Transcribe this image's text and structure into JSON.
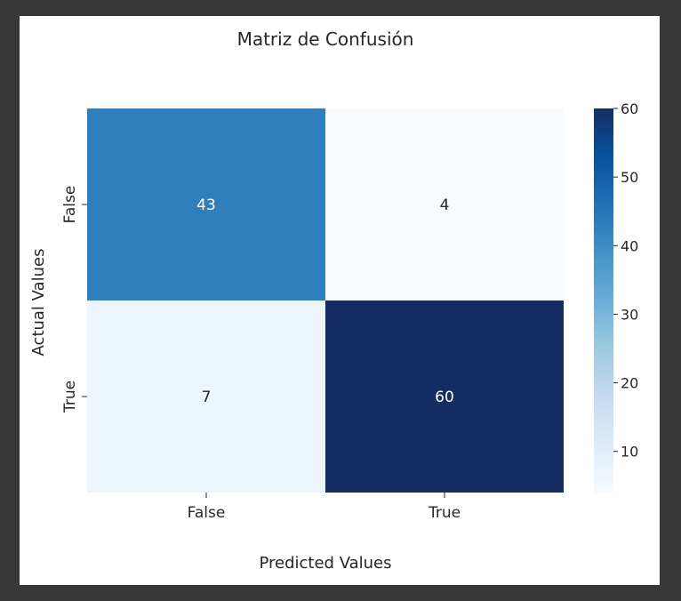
{
  "chart_data": {
    "type": "heatmap",
    "title": "Matriz de Confusión",
    "xlabel": "Predicted Values",
    "ylabel": "Actual Values",
    "x_categories": [
      "False",
      "True"
    ],
    "y_categories": [
      "False",
      "True"
    ],
    "values": [
      [
        43,
        4
      ],
      [
        7,
        60
      ]
    ],
    "colormap": "Blues",
    "colorbar": {
      "min": 4,
      "max": 60,
      "ticks": [
        10,
        20,
        30,
        40,
        50,
        60
      ]
    },
    "colors": {
      "low": "#f7fbff",
      "high": "#152d63",
      "annotation_light_bg": "#262626",
      "annotation_dark_bg": "#ffffff"
    }
  }
}
